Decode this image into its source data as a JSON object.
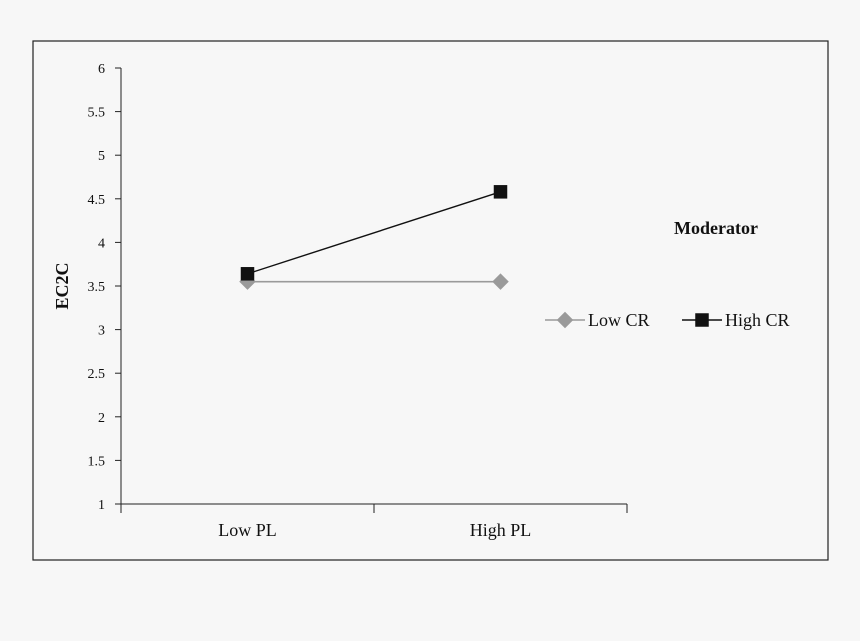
{
  "chart_data": {
    "type": "line",
    "categories": [
      "Low PL",
      "High PL"
    ],
    "ylabel": "EC2C",
    "xlabel": "",
    "ylim": [
      1,
      6
    ],
    "yticks": [
      "1",
      "1.5",
      "2",
      "2.5",
      "3",
      "3.5",
      "4",
      "4.5",
      "5",
      "5.5",
      "6"
    ],
    "legend_title": "Moderator",
    "legend_placement": "right",
    "grid": false,
    "series": [
      {
        "name": "Low CR",
        "values": [
          3.55,
          3.55
        ],
        "color": "#9a9a9a",
        "marker": "diamond"
      },
      {
        "name": "High CR",
        "values": [
          3.64,
          4.58
        ],
        "color": "#111111",
        "marker": "square"
      }
    ]
  }
}
